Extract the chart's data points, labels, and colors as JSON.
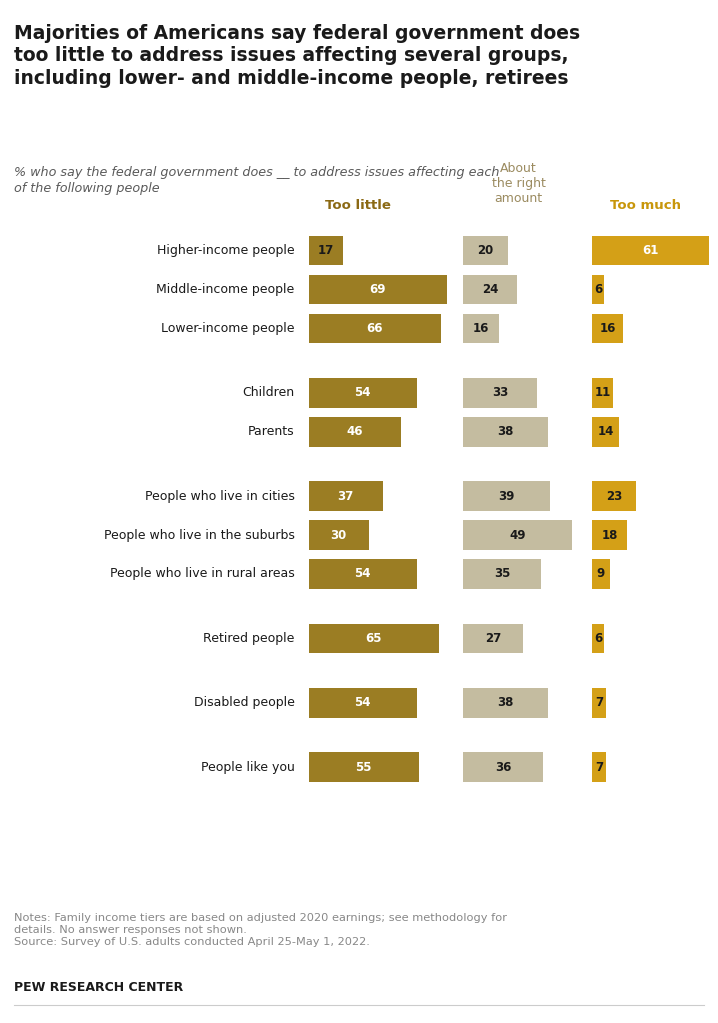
{
  "title": "Majorities of Americans say federal government does\ntoo little to address issues affecting several groups,\nincluding lower- and middle-income people, retirees",
  "subtitle": "% who say the federal government does __ to address issues affecting each\nof the following people",
  "categories": [
    "Higher-income people",
    "Middle-income people",
    "Lower-income people",
    "Children",
    "Parents",
    "People who live in cities",
    "People who live in the suburbs",
    "People who live in rural areas",
    "Retired people",
    "Disabled people",
    "People like you"
  ],
  "too_little": [
    17,
    69,
    66,
    54,
    46,
    37,
    30,
    54,
    65,
    54,
    55
  ],
  "right_amount": [
    20,
    24,
    16,
    33,
    38,
    39,
    49,
    35,
    27,
    38,
    36
  ],
  "too_much": [
    61,
    6,
    16,
    11,
    14,
    23,
    18,
    9,
    6,
    7,
    7
  ],
  "color_too_little": "#9B7D23",
  "color_right_amount": "#C4BCA0",
  "color_too_much": "#D4A017",
  "col_header_too_little": "Too little",
  "col_header_right": "About\nthe right\namount",
  "col_header_too_much": "Too much",
  "notes": "Notes: Family income tiers are based on adjusted 2020 earnings; see methodology for\ndetails. No answer responses not shown.\nSource: Survey of U.S. adults conducted April 25-May 1, 2022.",
  "footer": "PEW RESEARCH CENTER",
  "group_separators": [
    3,
    5,
    8,
    9,
    10
  ],
  "background_color": "#FFFFFF"
}
